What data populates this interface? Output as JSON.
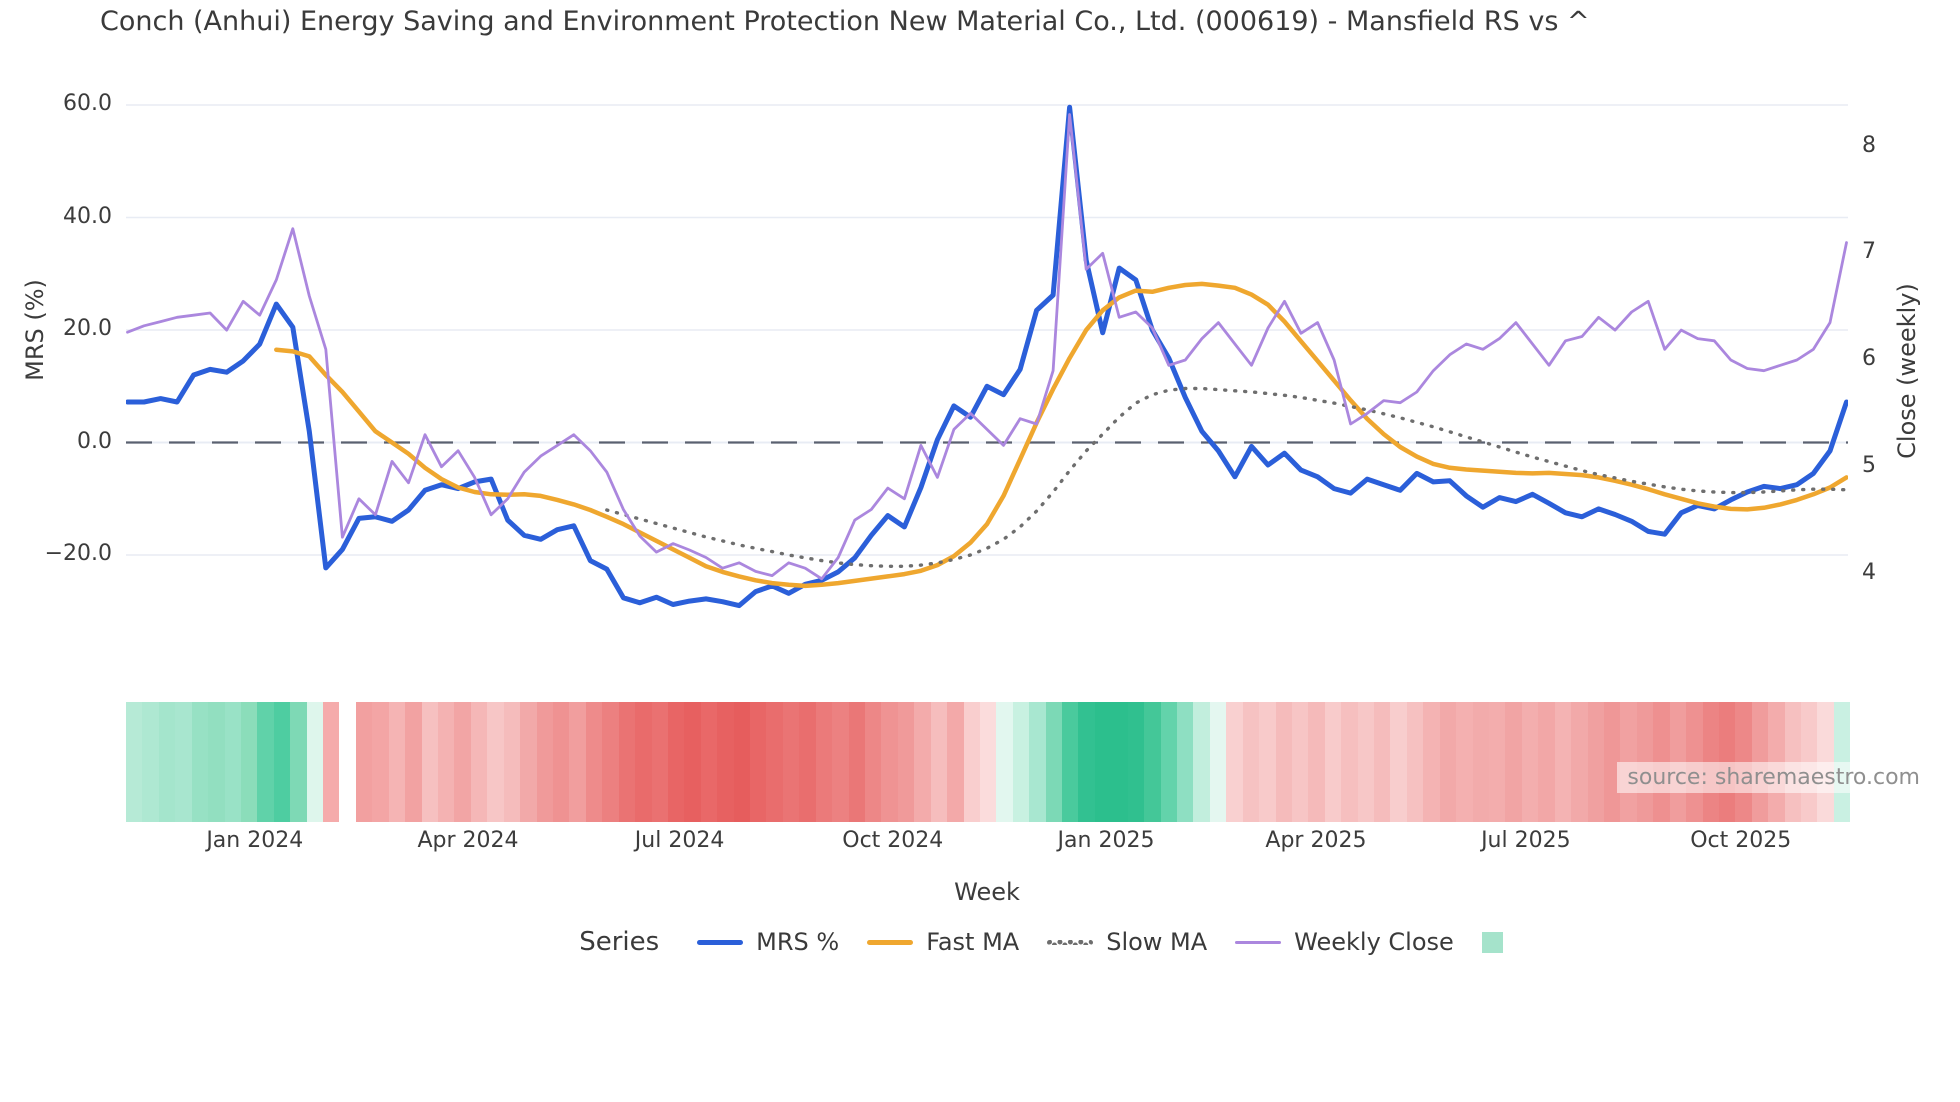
{
  "title": "Conch (Anhui) Energy Saving and Environment Protection New Material Co., Ltd. (000619) - Mansfield RS vs ^",
  "source_note": "source: sharemaestro.com",
  "legend": {
    "title": "Series",
    "items": [
      {
        "label": "MRS %",
        "color": "#2b5fd9",
        "type": "line"
      },
      {
        "label": "Fast MA",
        "color": "#efa72f",
        "type": "line"
      },
      {
        "label": "Slow MA",
        "color": "#6e6e6e",
        "type": "dotted"
      },
      {
        "label": "Weekly Close",
        "color": "#ab87de",
        "type": "line-thin"
      },
      {
        "label": "",
        "color": "#a5e3cb",
        "type": "square"
      }
    ]
  },
  "chart_data": {
    "type": "line",
    "title": "Conch (Anhui) Energy Saving and Environment Protection New Material Co., Ltd. (000619) - Mansfield RS vs ^",
    "xlabel": "Week",
    "ylabel_left": "MRS (%)",
    "ylabel_right": "Close (weekly)",
    "grid": true,
    "zero_line": true,
    "n_weeks": 105,
    "left_axis": {
      "ticks": [
        60,
        40,
        20,
        0,
        -20
      ],
      "tick_labels": [
        "60.0",
        "40.0",
        "20.0",
        "0.0",
        "−20.0"
      ],
      "range": [
        -32,
        64
      ]
    },
    "right_axis": {
      "ticks": [
        8,
        7,
        6,
        5,
        4
      ],
      "tick_labels": [
        "8",
        "7",
        "6",
        "5",
        "4"
      ],
      "range": [
        3.55,
        8.6
      ]
    },
    "x_tick_labels": [
      "Jan 2024",
      "Apr 2024",
      "Jul 2024",
      "Oct 2024",
      "Jan 2025",
      "Apr 2025",
      "Jul 2025",
      "Oct 2025"
    ],
    "x_tick_weeks": [
      7.7,
      20.6,
      33.4,
      46.3,
      59.2,
      71.9,
      84.6,
      97.6
    ],
    "series": [
      {
        "name": "MRS %",
        "axis": "left",
        "color": "#2b5fd9",
        "width": 5,
        "dash": null,
        "start_week": 0,
        "values": [
          7.2,
          7.2,
          7.8,
          7.2,
          12,
          13,
          12.5,
          14.5,
          17.5,
          24.6,
          20.5,
          2,
          -22.3,
          -19,
          -13.5,
          -13.2,
          -14,
          -12,
          -8.5,
          -7.5,
          -8.2,
          -7,
          -6.5,
          -13.8,
          -16.5,
          -17.2,
          -15.5,
          -14.8,
          -21,
          -22.5,
          -27.6,
          -28.5,
          -27.5,
          -28.8,
          -28.2,
          -27.8,
          -28.3,
          -29,
          -26.5,
          -25.5,
          -26.8,
          -25.2,
          -24.5,
          -23,
          -20.5,
          -16.5,
          -13,
          -15,
          -8,
          0.5,
          6.5,
          4.5,
          10,
          8.5,
          13,
          23.5,
          26.2,
          59.6,
          32.4,
          19.5,
          31,
          28.9,
          20,
          15,
          8,
          2,
          -1.5,
          -6.1,
          -0.7,
          -4,
          -1.9,
          -4.9,
          -6.1,
          -8.2,
          -9,
          -6.5,
          -7.5,
          -8.5,
          -5.5,
          -7,
          -6.8,
          -9.5,
          -11.5,
          -9.8,
          -10.5,
          -9.2,
          -10.8,
          -12.5,
          -13.2,
          -11.8,
          -12.8,
          -14,
          -15.8,
          -16.3,
          -12.5,
          -11.2,
          -11.8,
          -10.2,
          -8.8,
          -7.8,
          -8.2,
          -7.5,
          -5.5,
          -1.5,
          7.2
        ]
      },
      {
        "name": "Fast MA",
        "axis": "left",
        "color": "#efa72f",
        "width": 4.5,
        "dash": null,
        "start_week": 9,
        "values": [
          16.5,
          16.2,
          15.3,
          12,
          9,
          5.5,
          2,
          0,
          -2,
          -4.5,
          -6.5,
          -8,
          -8.8,
          -9.2,
          -9.3,
          -9.2,
          -9.5,
          -10.2,
          -11,
          -12,
          -13.2,
          -14.5,
          -16,
          -17.5,
          -19,
          -20.5,
          -22,
          -23,
          -23.8,
          -24.5,
          -25,
          -25.3,
          -25.5,
          -25.3,
          -25,
          -24.6,
          -24.2,
          -23.8,
          -23.4,
          -22.8,
          -21.8,
          -20.2,
          -17.8,
          -14.5,
          -9.5,
          -3,
          3.5,
          9.5,
          15,
          20,
          23.5,
          25.8,
          27,
          26.8,
          27.5,
          28,
          28.2,
          27.9,
          27.5,
          26.3,
          24.5,
          21.5,
          18,
          14.5,
          11,
          7.5,
          4.2,
          1.5,
          -0.8,
          -2.5,
          -3.8,
          -4.5,
          -4.8,
          -5,
          -5.2,
          -5.4,
          -5.5,
          -5.4,
          -5.6,
          -5.8,
          -6.2,
          -6.8,
          -7.5,
          -8.3,
          -9.2,
          -10,
          -10.8,
          -11.4,
          -11.8,
          -11.9,
          -11.6,
          -11,
          -10.2,
          -9.2,
          -8,
          -6.2
        ]
      },
      {
        "name": "Slow MA",
        "axis": "left",
        "color": "#6e6e6e",
        "width": 3.4,
        "dash": "1 9",
        "start_week": 29,
        "values": [
          -12,
          -12.8,
          -13.6,
          -14.4,
          -15.2,
          -16,
          -16.8,
          -17.5,
          -18.2,
          -18.8,
          -19.4,
          -20,
          -20.5,
          -21,
          -21.4,
          -21.7,
          -21.9,
          -22,
          -22,
          -21.8,
          -21.4,
          -20.8,
          -20,
          -18.8,
          -17.2,
          -15,
          -12.2,
          -8.8,
          -5,
          -1.5,
          1.5,
          4.5,
          7,
          8.5,
          9.3,
          9.6,
          9.6,
          9.4,
          9.2,
          9,
          8.7,
          8.4,
          8,
          7.5,
          7,
          6.4,
          5.8,
          5.1,
          4.4,
          3.6,
          2.8,
          1.9,
          1,
          0.1,
          -0.8,
          -1.7,
          -2.6,
          -3.4,
          -4.2,
          -5,
          -5.7,
          -6.3,
          -6.9,
          -7.4,
          -7.9,
          -8.3,
          -8.6,
          -8.8,
          -8.9,
          -8.9,
          -8.8,
          -8.6,
          -8.4,
          -8.3,
          -8.3,
          -8.4
        ]
      },
      {
        "name": "Weekly Close",
        "axis": "right",
        "color": "#ab87de",
        "width": 2.8,
        "dash": null,
        "start_week": 0,
        "values": [
          6.26,
          6.32,
          6.36,
          6.4,
          6.42,
          6.44,
          6.28,
          6.55,
          6.42,
          6.75,
          7.23,
          6.6,
          6.1,
          4.34,
          4.7,
          4.55,
          5.05,
          4.85,
          5.3,
          5.0,
          5.15,
          4.9,
          4.55,
          4.7,
          4.95,
          5.1,
          5.2,
          5.3,
          5.15,
          4.95,
          4.6,
          4.35,
          4.2,
          4.28,
          4.22,
          4.15,
          4.05,
          4.1,
          4.02,
          3.98,
          4.1,
          4.05,
          3.95,
          4.15,
          4.5,
          4.6,
          4.8,
          4.7,
          5.2,
          4.9,
          5.35,
          5.5,
          5.35,
          5.2,
          5.45,
          5.4,
          5.9,
          8.3,
          6.85,
          7.0,
          6.4,
          6.45,
          6.3,
          5.95,
          6.0,
          6.2,
          6.35,
          6.15,
          5.95,
          6.3,
          6.55,
          6.25,
          6.35,
          6.0,
          5.4,
          5.5,
          5.62,
          5.6,
          5.7,
          5.9,
          6.05,
          6.15,
          6.1,
          6.2,
          6.35,
          6.15,
          5.95,
          6.18,
          6.22,
          6.4,
          6.28,
          6.45,
          6.55,
          6.1,
          6.28,
          6.2,
          6.18,
          6.0,
          5.92,
          5.9,
          5.95,
          6.0,
          6.1,
          6.35,
          7.1
        ]
      }
    ],
    "heatmap": {
      "description": "weekly performance color strip",
      "colors": [
        "#b6ead6",
        "#aee8d2",
        "#a4e5cc",
        "#a8e6cf",
        "#97e1c4",
        "#92dfc0",
        "#99e2c6",
        "#8bddba",
        "#60d2a9",
        "#4ecda1",
        "#7ed9b5",
        "#def6ec",
        "#f5abab",
        "#ffffff",
        "#f2a0a0",
        "#f3a5a5",
        "#f5b4b4",
        "#f2a2a2",
        "#f6c0c0",
        "#f4b2b2",
        "#f2a5a5",
        "#f5b7b7",
        "#f7c6c6",
        "#f5bcbc",
        "#f2a9a9",
        "#f09a9a",
        "#ef9292",
        "#f19e9e",
        "#ee8b8b",
        "#ec8080",
        "#ea7373",
        "#e96b6b",
        "#ea7171",
        "#e86565",
        "#e76060",
        "#e96868",
        "#e76161",
        "#e65d5d",
        "#e86666",
        "#e96d6d",
        "#ea7474",
        "#e96e6e",
        "#eb7a7a",
        "#ec8181",
        "#ea7777",
        "#ed8787",
        "#ef9393",
        "#f09a9a",
        "#f3abab",
        "#f6bdbd",
        "#f3a9a9",
        "#f9cece",
        "#fbdcdc",
        "#e2f7ef",
        "#c8f1e1",
        "#a8e7d0",
        "#7cd9b6",
        "#4aca9d",
        "#32c191",
        "#2cbf8d",
        "#2cbf8d",
        "#30c08f",
        "#44c798",
        "#63d3ab",
        "#8edfc2",
        "#c2eedd",
        "#e4f7f0",
        "#f9d0d0",
        "#f6c2c2",
        "#f8caca",
        "#f5bbbb",
        "#f7c5c5",
        "#f5baba",
        "#f8cbcb",
        "#f6bfbf",
        "#f7c7c7",
        "#f5bcbc",
        "#f8cdcd",
        "#f6c1c1",
        "#f4b3b3",
        "#f2a9a9",
        "#f4b0b0",
        "#f2abab",
        "#f3adad",
        "#f1a4a4",
        "#f3aeae",
        "#f2a7a7",
        "#f4b3b3",
        "#f2a9a9",
        "#f0a0a0",
        "#ef9797",
        "#f1a1a1",
        "#ef9a9a",
        "#ee9090",
        "#f09d9d",
        "#ee9191",
        "#ec8484",
        "#eb7d7d",
        "#ed8888",
        "#f09c9c",
        "#f3acac",
        "#f6c0c0",
        "#f8caca",
        "#fadada",
        "#c9f0e2"
      ]
    }
  }
}
